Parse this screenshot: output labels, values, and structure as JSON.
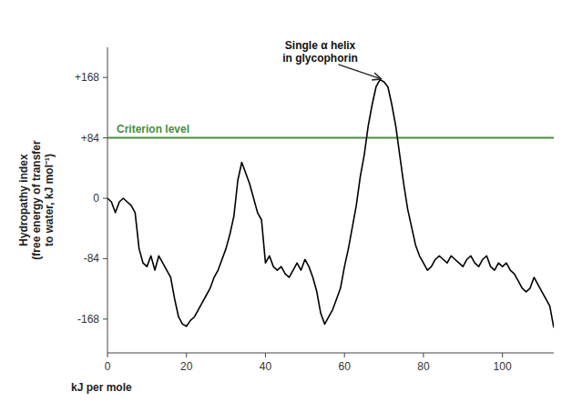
{
  "chart_data": {
    "type": "line",
    "ylabel": "Hydropathy index\n(free energy of transfer\nto water, kJ mol⁻¹)",
    "xlabel": "kJ per mole",
    "xlim": [
      0,
      113
    ],
    "ylim": [
      -215,
      210
    ],
    "xticks": [
      0,
      20,
      40,
      60,
      80,
      100
    ],
    "yticks": [
      -168,
      -84,
      0,
      {
        "value": 84,
        "label": "+84"
      },
      {
        "value": 168,
        "label": "+168"
      }
    ],
    "grid": false,
    "color": "#000000",
    "x": [
      0,
      1,
      2,
      3,
      4,
      5,
      6,
      7,
      8,
      9,
      10,
      11,
      12,
      13,
      14,
      15,
      16,
      17,
      18,
      19,
      20,
      21,
      22,
      23,
      24,
      25,
      26,
      27,
      28,
      29,
      30,
      31,
      32,
      33,
      34,
      35,
      36,
      37,
      38,
      39,
      40,
      41,
      42,
      43,
      44,
      45,
      46,
      47,
      48,
      49,
      50,
      51,
      52,
      53,
      54,
      55,
      56,
      57,
      58,
      59,
      60,
      61,
      62,
      63,
      64,
      65,
      66,
      67,
      68,
      69,
      70,
      71,
      72,
      73,
      74,
      75,
      76,
      77,
      78,
      79,
      80,
      81,
      82,
      83,
      84,
      85,
      86,
      87,
      88,
      89,
      90,
      91,
      92,
      93,
      94,
      95,
      96,
      97,
      98,
      99,
      100,
      101,
      102,
      103,
      104,
      105,
      106,
      107,
      108,
      109,
      110,
      111,
      112,
      113
    ],
    "values": [
      0,
      -5,
      -20,
      -5,
      0,
      -5,
      -10,
      -20,
      -70,
      -90,
      -95,
      -80,
      -100,
      -80,
      -90,
      -100,
      -110,
      -140,
      -165,
      -175,
      -178,
      -170,
      -165,
      -155,
      -145,
      -135,
      -125,
      -110,
      -100,
      -85,
      -70,
      -50,
      -25,
      25,
      50,
      35,
      20,
      0,
      -20,
      -30,
      -90,
      -80,
      -95,
      -100,
      -95,
      -105,
      -110,
      -100,
      -90,
      -100,
      -85,
      -95,
      -110,
      -130,
      -160,
      -175,
      -165,
      -155,
      -140,
      -125,
      -95,
      -70,
      -40,
      -10,
      30,
      60,
      100,
      130,
      155,
      165,
      162,
      155,
      130,
      100,
      60,
      20,
      -15,
      -40,
      -65,
      -80,
      -90,
      -100,
      -95,
      -85,
      -80,
      -85,
      -90,
      -80,
      -85,
      -90,
      -95,
      -85,
      -80,
      -90,
      -95,
      -85,
      -80,
      -95,
      -100,
      -90,
      -95,
      -90,
      -100,
      -105,
      -115,
      -125,
      -130,
      -125,
      -110,
      -120,
      -130,
      -140,
      -150,
      -180
    ],
    "reference_lines": [
      {
        "y": 84,
        "label": "Criterion level",
        "color": "#4a8c3f"
      }
    ],
    "annotations": [
      {
        "text": "Single α helix\nin glycophorin",
        "x": 70,
        "y": 162
      }
    ]
  }
}
